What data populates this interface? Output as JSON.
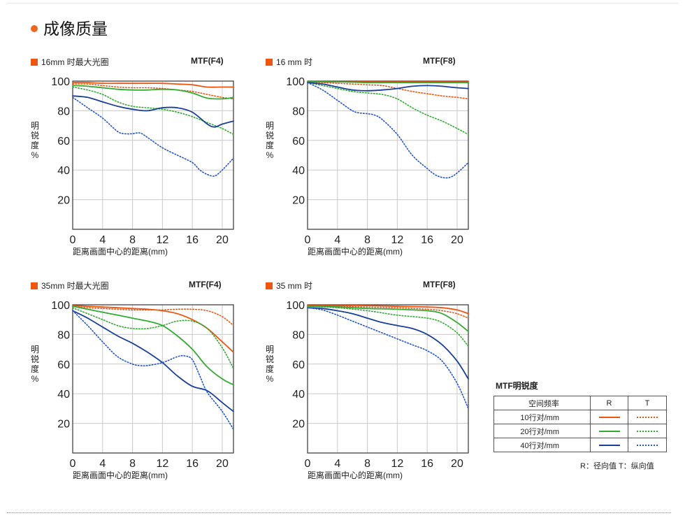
{
  "section": {
    "title": "成像质量"
  },
  "chart_data": [
    {
      "type": "line",
      "title": "16mm 时最大光圈",
      "aperture": "MTF(F4)",
      "xlabel": "距离画面中心的距离(mm)",
      "ylabel": [
        "明",
        "锐",
        "度",
        "%"
      ],
      "xlim": [
        0,
        21.5
      ],
      "ylim": [
        0,
        100
      ],
      "xticks": [
        "0",
        "4",
        "8",
        "12",
        "16",
        "20"
      ],
      "yticks": [
        "100",
        "80",
        "60",
        "40",
        "20"
      ],
      "grid": true,
      "series": [
        {
          "name": "10行对/mm",
          "plane": "R",
          "color": "#ee5511",
          "dotted": false,
          "x": [
            0,
            2,
            4,
            6,
            8,
            10,
            12,
            14,
            16,
            18,
            20,
            21.5
          ],
          "y": [
            99,
            99,
            98.5,
            98.5,
            98.5,
            98.5,
            98.5,
            98,
            97.5,
            96,
            96,
            96
          ]
        },
        {
          "name": "10行对/mm",
          "plane": "T",
          "color": "#ee5511",
          "dotted": true,
          "x": [
            0,
            2,
            4,
            6,
            8,
            10,
            12,
            14,
            16,
            18,
            20,
            21.5
          ],
          "y": [
            98,
            98,
            97,
            96,
            95.5,
            95.5,
            95,
            94,
            93,
            91,
            89,
            88
          ]
        },
        {
          "name": "20行对/mm",
          "plane": "R",
          "color": "#33aa33",
          "dotted": false,
          "x": [
            0,
            2,
            4,
            6,
            8,
            10,
            12,
            14,
            16,
            18,
            20,
            21.5
          ],
          "y": [
            97,
            96.5,
            95.5,
            94.5,
            94,
            94,
            94.5,
            94,
            92,
            88.5,
            88,
            89
          ]
        },
        {
          "name": "20行对/mm",
          "plane": "T",
          "color": "#33aa33",
          "dotted": true,
          "x": [
            0,
            2,
            4,
            6,
            8,
            10,
            12,
            14,
            16,
            18,
            20,
            21.5
          ],
          "y": [
            96,
            94,
            91,
            86,
            83,
            82,
            81,
            79,
            76,
            72,
            68,
            64
          ]
        },
        {
          "name": "40行对/mm",
          "plane": "R",
          "color": "#1a3f99",
          "dotted": false,
          "x": [
            0,
            2,
            4,
            6,
            8,
            10,
            12,
            14,
            16,
            18,
            19,
            20,
            21.5
          ],
          "y": [
            90,
            89,
            86,
            83,
            81,
            80,
            82,
            82,
            79,
            71,
            69,
            71,
            73
          ]
        },
        {
          "name": "40行对/mm",
          "plane": "T",
          "color": "#2255cc",
          "dotted": true,
          "x": [
            0,
            2,
            4,
            6,
            7,
            8,
            9,
            10,
            12,
            14,
            16,
            17,
            18,
            19,
            20,
            21.5
          ],
          "y": [
            89,
            82,
            75,
            66,
            64.5,
            64.5,
            65,
            62,
            55,
            50,
            45,
            40,
            37,
            36,
            40,
            48
          ]
        }
      ]
    },
    {
      "type": "line",
      "title": "16 mm 时",
      "aperture": "MTF(F8)",
      "xlabel": "距离画面中心的距离(mm)",
      "ylabel": [
        "明",
        "锐",
        "度",
        "%"
      ],
      "xlim": [
        0,
        21.5
      ],
      "ylim": [
        0,
        100
      ],
      "xticks": [
        "0",
        "4",
        "8",
        "12",
        "16",
        "20"
      ],
      "yticks": [
        "100",
        "80",
        "60",
        "40",
        "20"
      ],
      "grid": true,
      "series": [
        {
          "name": "10行对/mm",
          "plane": "R",
          "color": "#ee5511",
          "dotted": false,
          "x": [
            0,
            4,
            8,
            12,
            16,
            20,
            21.5
          ],
          "y": [
            99.5,
            99.5,
            99.5,
            99.5,
            99.5,
            99.5,
            99.5
          ]
        },
        {
          "name": "10行对/mm",
          "plane": "T",
          "color": "#ee5511",
          "dotted": true,
          "x": [
            0,
            2,
            4,
            6,
            8,
            10,
            12,
            14,
            16,
            18,
            20,
            21.5
          ],
          "y": [
            99.5,
            99,
            98.5,
            98,
            97.5,
            97,
            95,
            93,
            91.5,
            90,
            89,
            88
          ]
        },
        {
          "name": "20行对/mm",
          "plane": "R",
          "color": "#33aa33",
          "dotted": false,
          "x": [
            0,
            4,
            8,
            12,
            16,
            20,
            21.5
          ],
          "y": [
            99.5,
            99.5,
            99,
            99,
            99,
            99,
            99
          ]
        },
        {
          "name": "20行对/mm",
          "plane": "T",
          "color": "#33aa33",
          "dotted": true,
          "x": [
            0,
            2,
            4,
            6,
            8,
            10,
            12,
            14,
            16,
            18,
            20,
            21.5
          ],
          "y": [
            99,
            97,
            95,
            93,
            92,
            91,
            88,
            82,
            77,
            73,
            68,
            64
          ]
        },
        {
          "name": "40行对/mm",
          "plane": "R",
          "color": "#1a3f99",
          "dotted": false,
          "x": [
            0,
            2,
            4,
            6,
            8,
            10,
            12,
            14,
            16,
            18,
            20,
            21.5
          ],
          "y": [
            99,
            98,
            96,
            94,
            93.5,
            94,
            95,
            96.5,
            97,
            96.5,
            95.5,
            95
          ]
        },
        {
          "name": "40行对/mm",
          "plane": "T",
          "color": "#2255cc",
          "dotted": true,
          "x": [
            0,
            2,
            4,
            6,
            7,
            8,
            9,
            10,
            12,
            14,
            16,
            17,
            18,
            19,
            20,
            21.5
          ],
          "y": [
            99,
            94,
            87,
            80,
            78.5,
            78,
            77,
            74,
            64,
            50,
            41,
            37,
            35,
            35,
            38,
            45
          ]
        }
      ]
    },
    {
      "type": "line",
      "title": "35mm 时最大光圈",
      "aperture": "MTF(F4)",
      "xlabel": "距离画面中心的距离(mm)",
      "ylabel": [
        "明",
        "锐",
        "度",
        "%"
      ],
      "xlim": [
        0,
        21.5
      ],
      "ylim": [
        0,
        100
      ],
      "xticks": [
        "0",
        "4",
        "8",
        "12",
        "16",
        "20"
      ],
      "yticks": [
        "100",
        "80",
        "60",
        "40",
        "20"
      ],
      "grid": true,
      "series": [
        {
          "name": "10行对/mm",
          "plane": "R",
          "color": "#ee5511",
          "dotted": false,
          "x": [
            0,
            2,
            4,
            6,
            8,
            10,
            12,
            14,
            16,
            18,
            20,
            21.5
          ],
          "y": [
            99.5,
            99,
            98.5,
            98,
            97.5,
            97,
            96,
            94,
            90,
            84,
            75,
            68
          ]
        },
        {
          "name": "10行对/mm",
          "plane": "T",
          "color": "#ee5511",
          "dotted": true,
          "x": [
            0,
            2,
            4,
            6,
            8,
            10,
            12,
            14,
            16,
            18,
            20,
            21.5
          ],
          "y": [
            99,
            98,
            97.5,
            97,
            96.5,
            96.5,
            96.5,
            97,
            97,
            96,
            92,
            86
          ]
        },
        {
          "name": "20行对/mm",
          "plane": "R",
          "color": "#33aa33",
          "dotted": false,
          "x": [
            0,
            2,
            4,
            6,
            8,
            10,
            12,
            14,
            16,
            18,
            20,
            21.5
          ],
          "y": [
            99,
            97,
            95,
            93,
            91,
            89,
            86,
            79,
            70,
            58,
            50,
            46
          ]
        },
        {
          "name": "20行对/mm",
          "plane": "T",
          "color": "#33aa33",
          "dotted": true,
          "x": [
            0,
            2,
            4,
            6,
            8,
            10,
            12,
            14,
            16,
            18,
            20,
            21.5
          ],
          "y": [
            98,
            94,
            90,
            86,
            84,
            84,
            86,
            89,
            89,
            84,
            71,
            57
          ]
        },
        {
          "name": "40行对/mm",
          "plane": "R",
          "color": "#1a3f99",
          "dotted": false,
          "x": [
            0,
            2,
            4,
            6,
            8,
            10,
            12,
            14,
            16,
            18,
            20,
            21.5
          ],
          "y": [
            96,
            91,
            85,
            79,
            74,
            68,
            61,
            52,
            45,
            42,
            34,
            28
          ]
        },
        {
          "name": "40行对/mm",
          "plane": "T",
          "color": "#2255cc",
          "dotted": true,
          "x": [
            0,
            2,
            4,
            6,
            8,
            9,
            10,
            12,
            14,
            15,
            16,
            17,
            18,
            20,
            21.5
          ],
          "y": [
            96,
            86,
            75,
            65,
            60,
            59,
            59,
            61,
            65,
            65.5,
            63,
            52,
            41,
            28,
            16
          ]
        }
      ]
    },
    {
      "type": "line",
      "title": "35 mm 时",
      "aperture": "MTF(F8)",
      "xlabel": "距离画面中心的距离(mm)",
      "ylabel": [
        "明",
        "锐",
        "度",
        "%"
      ],
      "xlim": [
        0,
        21.5
      ],
      "ylim": [
        0,
        100
      ],
      "xticks": [
        "0",
        "4",
        "8",
        "12",
        "16",
        "20"
      ],
      "yticks": [
        "100",
        "80",
        "60",
        "40",
        "20"
      ],
      "grid": true,
      "series": [
        {
          "name": "10行对/mm",
          "plane": "R",
          "color": "#ee5511",
          "dotted": false,
          "x": [
            0,
            4,
            8,
            12,
            16,
            18,
            20,
            21.5
          ],
          "y": [
            99.5,
            99.5,
            99.5,
            99,
            98.5,
            98,
            96.5,
            94
          ]
        },
        {
          "name": "10行对/mm",
          "plane": "T",
          "color": "#ee5511",
          "dotted": true,
          "x": [
            0,
            4,
            8,
            12,
            16,
            18,
            20,
            21.5
          ],
          "y": [
            99.5,
            99,
            98.5,
            98,
            97,
            96,
            94,
            91
          ]
        },
        {
          "name": "20行对/mm",
          "plane": "R",
          "color": "#33aa33",
          "dotted": false,
          "x": [
            0,
            4,
            8,
            12,
            16,
            18,
            20,
            21.5
          ],
          "y": [
            99,
            98.5,
            97.5,
            97,
            96,
            94,
            88,
            82
          ]
        },
        {
          "name": "20行对/mm",
          "plane": "T",
          "color": "#33aa33",
          "dotted": true,
          "x": [
            0,
            4,
            8,
            12,
            16,
            18,
            20,
            21.5
          ],
          "y": [
            99,
            98,
            96,
            93,
            91,
            88,
            81,
            72
          ]
        },
        {
          "name": "40行对/mm",
          "plane": "R",
          "color": "#1a3f99",
          "dotted": false,
          "x": [
            0,
            2,
            4,
            6,
            8,
            10,
            12,
            14,
            16,
            18,
            20,
            21.5
          ],
          "y": [
            98,
            97.5,
            96,
            94,
            91,
            88,
            86,
            84,
            80,
            73,
            62,
            50
          ]
        },
        {
          "name": "40行对/mm",
          "plane": "T",
          "color": "#2255cc",
          "dotted": true,
          "x": [
            0,
            2,
            4,
            6,
            8,
            10,
            12,
            14,
            16,
            18,
            20,
            21.5
          ],
          "y": [
            98,
            96.5,
            93,
            89,
            85,
            81,
            77,
            73,
            69,
            62,
            47,
            30
          ]
        }
      ]
    }
  ],
  "legend": {
    "title": "MTF明锐度",
    "header": {
      "label": "空间频率",
      "r": "R",
      "t": "T"
    },
    "rows": [
      {
        "label": "10行对/mm",
        "color": "#ee5511"
      },
      {
        "label": "20行对/mm",
        "color": "#33aa33"
      },
      {
        "label": "40行对/mm",
        "color": "#1a3f99"
      }
    ],
    "note": "R：径向值  T：纵向值"
  }
}
